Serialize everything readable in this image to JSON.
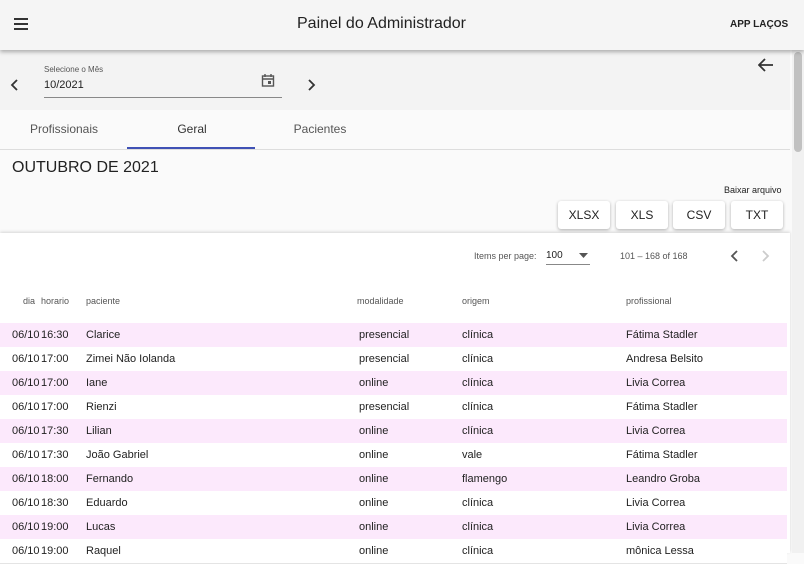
{
  "header": {
    "title": "Painel do Administrador",
    "app": "APP LAÇOS"
  },
  "month_picker": {
    "label": "Selecione o Mês",
    "value": "10/2021"
  },
  "tabs": [
    "Profissionais",
    "Geral",
    "Pacientes"
  ],
  "content": {
    "title": "OUTUBRO DE 2021",
    "download_label": "Baixar arquivo",
    "buttons": [
      "XLSX",
      "XLS",
      "CSV",
      "TXT"
    ]
  },
  "paginator": {
    "items_label": "Items per page:",
    "page_size": "100",
    "range": "101 – 168 of 168"
  },
  "table": {
    "columns": [
      "dia",
      "horario",
      "paciente",
      "modalidade",
      "origem",
      "profissional"
    ],
    "rows": [
      [
        "06/10",
        "16:30",
        "Clarice",
        "presencial",
        "clínica",
        "Fátima Stadler"
      ],
      [
        "06/10",
        "17:00",
        "Zimei Não Iolanda",
        "presencial",
        "clínica",
        "Andresa Belsito"
      ],
      [
        "06/10",
        "17:00",
        "Iane",
        "online",
        "clínica",
        "Livia Correa"
      ],
      [
        "06/10",
        "17:00",
        "Rienzi",
        "presencial",
        "clínica",
        "Fátima Stadler"
      ],
      [
        "06/10",
        "17:30",
        "Lilian",
        "online",
        "clínica",
        "Livia Correa"
      ],
      [
        "06/10",
        "17:30",
        "João Gabriel",
        "online",
        "vale",
        "Fátima Stadler"
      ],
      [
        "06/10",
        "18:00",
        "Fernando",
        "online",
        "flamengo",
        "Leandro Groba"
      ],
      [
        "06/10",
        "18:30",
        "Eduardo",
        "online",
        "clínica",
        "Livia Correa"
      ],
      [
        "06/10",
        "19:00",
        "Lucas",
        "online",
        "clínica",
        "Livia Correa"
      ],
      [
        "06/10",
        "19:00",
        "Raquel",
        "online",
        "clínica",
        "mônica Lessa"
      ]
    ]
  }
}
